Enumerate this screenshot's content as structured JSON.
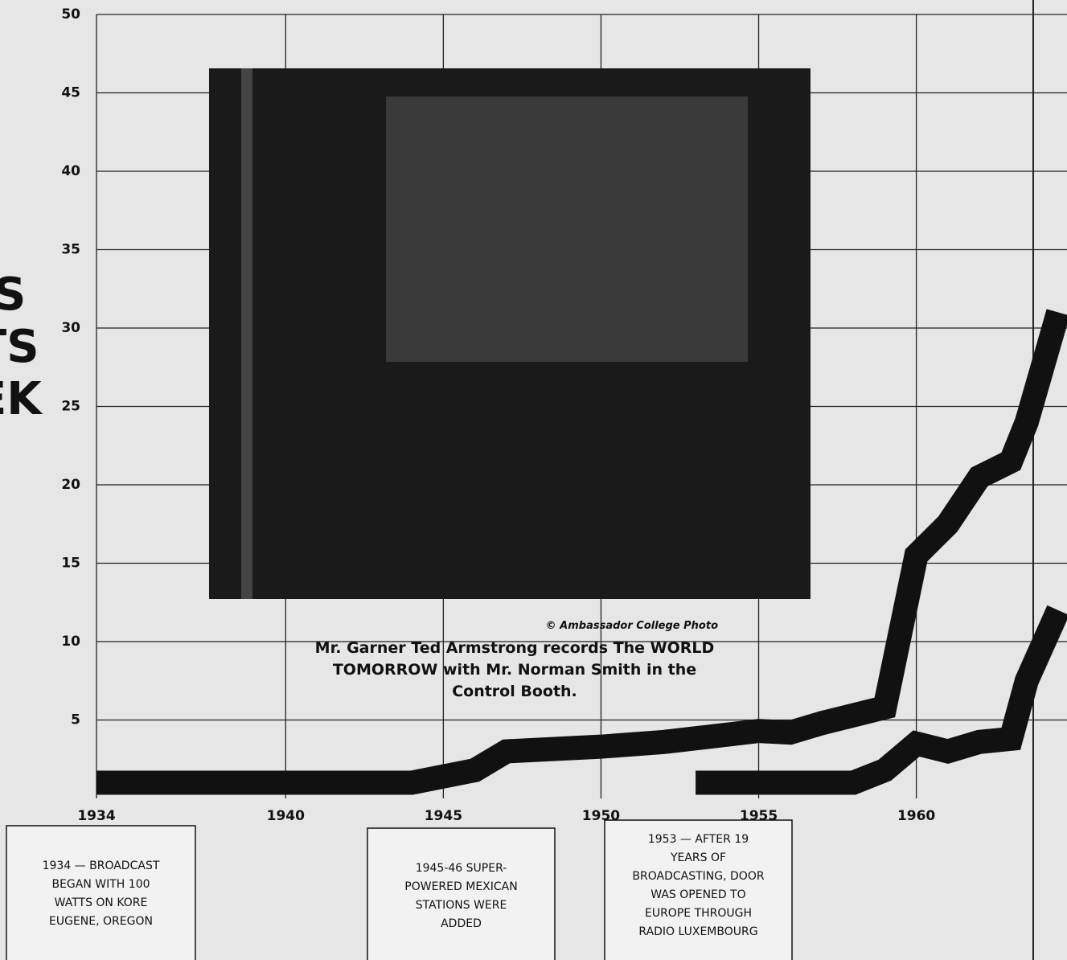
{
  "chart_data": {
    "type": "line",
    "side_text": [
      "S",
      "TS",
      "EK"
    ],
    "x": [
      1934,
      1944,
      1946,
      1947,
      1950,
      1952,
      1955,
      1956,
      1957,
      1959,
      1960,
      1960.5,
      1961,
      1962,
      1963,
      1963.5,
      1964.5
    ],
    "series": [
      {
        "color": "#111111",
        "values": [
          1,
          1,
          1.8,
          3,
          3.3,
          3.6,
          4.3,
          4.2,
          4.8,
          5.8,
          15.5,
          16.5,
          17.5,
          20.5,
          21.5,
          24,
          31
        ]
      },
      {
        "color": "#111111",
        "values": [
          null,
          null,
          null,
          null,
          null,
          null,
          null,
          null,
          null,
          null,
          null,
          null,
          null,
          null,
          null,
          null,
          null
        ]
      }
    ],
    "series2_x": [
      1953,
      1955,
      1958,
      1959,
      1960,
      1961,
      1962,
      1963,
      1963.5,
      1964.5
    ],
    "series2_values": [
      1,
      1,
      1,
      1.8,
      3.5,
      3,
      3.6,
      3.8,
      7.5,
      12
    ],
    "xlim": [
      1934,
      1964.6
    ],
    "ylim": [
      0,
      50
    ],
    "xticks": [
      1934,
      1940,
      1945,
      1950,
      1955,
      1960
    ],
    "yticks": [
      5,
      10,
      15,
      20,
      25,
      30,
      35,
      40,
      45,
      50
    ],
    "grid": true,
    "photo_credit": "© Ambassador College Photo",
    "caption": [
      "Mr. Garner Ted Armstrong records The WORLD",
      "TOMORROW with Mr. Norman Smith in the",
      "Control Booth."
    ],
    "annotations": [
      [
        "1934 — BROADCAST",
        "BEGAN WITH 100",
        "WATTS ON KORE",
        "EUGENE, OREGON"
      ],
      [
        "1945-46 SUPER-",
        "POWERED MEXICAN",
        "STATIONS WERE",
        "ADDED"
      ],
      [
        "1953 — AFTER 19",
        "YEARS OF",
        "BROADCASTING, DOOR",
        "WAS OPENED TO",
        "EUROPE THROUGH",
        "RADIO LUXEMBOURG"
      ]
    ]
  }
}
